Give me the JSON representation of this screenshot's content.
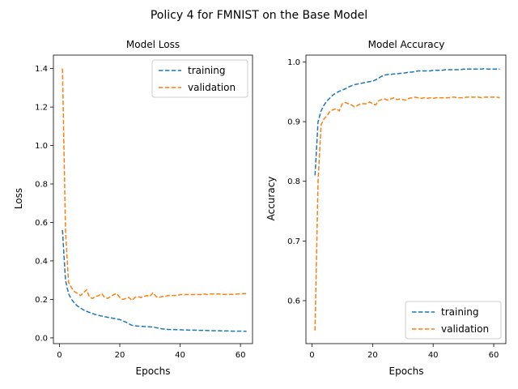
{
  "figure": {
    "suptitle": "Policy 4 for FMNIST on the Base Model"
  },
  "chart_data": [
    {
      "type": "line",
      "title": "Model Loss",
      "xlabel": "Epochs",
      "ylabel": "Loss",
      "xlim": [
        -2,
        64
      ],
      "ylim": [
        -0.03,
        1.47
      ],
      "xticks": [
        0,
        20,
        40,
        60
      ],
      "xtick_labels": [
        "0",
        "20",
        "40",
        "60"
      ],
      "yticks": [
        0.0,
        0.2,
        0.4,
        0.6,
        0.8,
        1.0,
        1.2,
        1.4
      ],
      "ytick_labels": [
        "0.0",
        "0.2",
        "0.4",
        "0.6",
        "0.8",
        "1.0",
        "1.2",
        "1.4"
      ],
      "grid": false,
      "legend": "top-right",
      "series": [
        {
          "name": "training",
          "color": "#1f77b4",
          "x": [
            1,
            2,
            3,
            4,
            5,
            6,
            7,
            8,
            9,
            10,
            11,
            12,
            13,
            14,
            15,
            16,
            17,
            18,
            19,
            20,
            21,
            22,
            23,
            24,
            25,
            26,
            27,
            28,
            29,
            30,
            31,
            32,
            33,
            34,
            35,
            36,
            37,
            38,
            39,
            40,
            41,
            42,
            43,
            44,
            45,
            46,
            47,
            48,
            49,
            50,
            51,
            52,
            53,
            54,
            55,
            56,
            57,
            58,
            59,
            60,
            61,
            62
          ],
          "y": [
            0.56,
            0.3,
            0.23,
            0.2,
            0.18,
            0.165,
            0.155,
            0.145,
            0.138,
            0.132,
            0.126,
            0.121,
            0.117,
            0.113,
            0.11,
            0.107,
            0.104,
            0.101,
            0.098,
            0.095,
            0.088,
            0.082,
            0.073,
            0.065,
            0.063,
            0.061,
            0.06,
            0.059,
            0.058,
            0.057,
            0.056,
            0.053,
            0.05,
            0.047,
            0.045,
            0.044,
            0.043,
            0.043,
            0.042,
            0.042,
            0.041,
            0.041,
            0.04,
            0.04,
            0.04,
            0.039,
            0.039,
            0.039,
            0.038,
            0.038,
            0.037,
            0.037,
            0.037,
            0.036,
            0.036,
            0.036,
            0.035,
            0.035,
            0.035,
            0.035,
            0.034,
            0.034
          ]
        },
        {
          "name": "validation",
          "color": "#ff7f0e",
          "x": [
            1,
            2,
            3,
            4,
            5,
            6,
            7,
            8,
            9,
            10,
            11,
            12,
            13,
            14,
            15,
            16,
            17,
            18,
            19,
            20,
            21,
            22,
            23,
            24,
            25,
            26,
            27,
            28,
            29,
            30,
            31,
            32,
            33,
            34,
            35,
            36,
            37,
            38,
            39,
            40,
            41,
            42,
            43,
            44,
            45,
            46,
            47,
            48,
            49,
            50,
            51,
            52,
            53,
            54,
            55,
            56,
            57,
            58,
            59,
            60,
            61,
            62
          ],
          "y": [
            1.4,
            0.56,
            0.29,
            0.26,
            0.24,
            0.23,
            0.22,
            0.235,
            0.25,
            0.21,
            0.205,
            0.215,
            0.22,
            0.23,
            0.21,
            0.205,
            0.215,
            0.225,
            0.23,
            0.21,
            0.2,
            0.205,
            0.21,
            0.195,
            0.21,
            0.215,
            0.21,
            0.215,
            0.22,
            0.215,
            0.235,
            0.215,
            0.21,
            0.215,
            0.215,
            0.22,
            0.22,
            0.22,
            0.22,
            0.225,
            0.225,
            0.225,
            0.225,
            0.225,
            0.225,
            0.225,
            0.225,
            0.228,
            0.225,
            0.228,
            0.228,
            0.228,
            0.228,
            0.226,
            0.226,
            0.226,
            0.226,
            0.226,
            0.228,
            0.228,
            0.23,
            0.23
          ]
        }
      ]
    },
    {
      "type": "line",
      "title": "Model Accuracy",
      "xlabel": "Epochs",
      "ylabel": "Accuracy",
      "xlim": [
        -2,
        64
      ],
      "ylim": [
        0.528,
        1.0115
      ],
      "xticks": [
        0,
        20,
        40,
        60
      ],
      "xtick_labels": [
        "0",
        "20",
        "40",
        "60"
      ],
      "yticks": [
        0.6,
        0.7,
        0.8,
        0.9,
        1.0
      ],
      "ytick_labels": [
        "0.6",
        "0.7",
        "0.8",
        "0.9",
        "1.0"
      ],
      "grid": false,
      "legend": "bottom-right",
      "series": [
        {
          "name": "training",
          "color": "#1f77b4",
          "x": [
            1,
            2,
            3,
            4,
            5,
            6,
            7,
            8,
            9,
            10,
            11,
            12,
            13,
            14,
            15,
            16,
            17,
            18,
            19,
            20,
            21,
            22,
            23,
            24,
            25,
            26,
            27,
            28,
            29,
            30,
            31,
            32,
            33,
            34,
            35,
            36,
            37,
            38,
            39,
            40,
            41,
            42,
            43,
            44,
            45,
            46,
            47,
            48,
            49,
            50,
            51,
            52,
            53,
            54,
            55,
            56,
            57,
            58,
            59,
            60,
            61,
            62
          ],
          "y": [
            0.81,
            0.9,
            0.918,
            0.928,
            0.935,
            0.94,
            0.945,
            0.948,
            0.951,
            0.953,
            0.955,
            0.958,
            0.96,
            0.962,
            0.963,
            0.964,
            0.965,
            0.966,
            0.967,
            0.968,
            0.97,
            0.973,
            0.976,
            0.978,
            0.979,
            0.979,
            0.98,
            0.98,
            0.981,
            0.981,
            0.982,
            0.983,
            0.983,
            0.984,
            0.985,
            0.985,
            0.985,
            0.985,
            0.985,
            0.986,
            0.986,
            0.986,
            0.986,
            0.987,
            0.987,
            0.987,
            0.987,
            0.987,
            0.987,
            0.988,
            0.988,
            0.988,
            0.988,
            0.988,
            0.988,
            0.988,
            0.989,
            0.988,
            0.988,
            0.988,
            0.988,
            0.988
          ]
        },
        {
          "name": "validation",
          "color": "#ff7f0e",
          "x": [
            1,
            2,
            3,
            4,
            5,
            6,
            7,
            8,
            9,
            10,
            11,
            12,
            13,
            14,
            15,
            16,
            17,
            18,
            19,
            20,
            21,
            22,
            23,
            24,
            25,
            26,
            27,
            28,
            29,
            30,
            31,
            32,
            33,
            34,
            35,
            36,
            37,
            38,
            39,
            40,
            41,
            42,
            43,
            44,
            45,
            46,
            47,
            48,
            49,
            50,
            51,
            52,
            53,
            54,
            55,
            56,
            57,
            58,
            59,
            60,
            61,
            62
          ],
          "y": [
            0.55,
            0.8,
            0.895,
            0.905,
            0.91,
            0.918,
            0.92,
            0.922,
            0.918,
            0.93,
            0.932,
            0.93,
            0.928,
            0.925,
            0.927,
            0.93,
            0.93,
            0.93,
            0.933,
            0.93,
            0.928,
            0.935,
            0.937,
            0.938,
            0.936,
            0.938,
            0.94,
            0.937,
            0.938,
            0.937,
            0.936,
            0.939,
            0.94,
            0.941,
            0.94,
            0.939,
            0.94,
            0.939,
            0.94,
            0.939,
            0.94,
            0.94,
            0.94,
            0.94,
            0.94,
            0.941,
            0.941,
            0.94,
            0.94,
            0.94,
            0.941,
            0.941,
            0.941,
            0.941,
            0.941,
            0.94,
            0.941,
            0.941,
            0.941,
            0.941,
            0.941,
            0.94
          ]
        }
      ]
    }
  ]
}
